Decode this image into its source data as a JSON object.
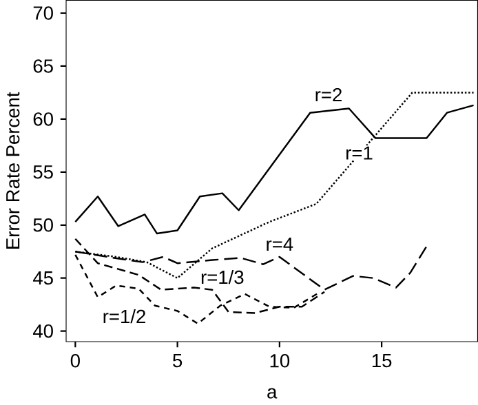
{
  "chart_data": {
    "type": "line",
    "xlabel": "a",
    "ylabel": "Error Rate Percent",
    "xlim": [
      -0.45,
      19.7
    ],
    "ylim": [
      39,
      71.2
    ],
    "xticks": [
      0,
      5,
      10,
      15
    ],
    "yticks": [
      40,
      45,
      50,
      55,
      60,
      65,
      70
    ],
    "marker": "none",
    "series": [
      {
        "color": "#000000",
        "line_style": "solid",
        "x": [
          0,
          1.1,
          2.1,
          3.4,
          4,
          5,
          6.1,
          7.2,
          8,
          11.5,
          13.4,
          14.7,
          17.2,
          18.2,
          19.5
        ],
        "values": [
          50.3,
          52.7,
          49.9,
          51,
          49.2,
          49.5,
          52.7,
          53,
          51.4,
          60.6,
          61,
          58.2,
          58.2,
          60.6,
          61.3
        ]
      },
      {
        "color": "#000000",
        "line_style": "dotted",
        "x": [
          0,
          2,
          3.5,
          5,
          6.7,
          9.5,
          11.8,
          16.5,
          19.5
        ],
        "values": [
          47.5,
          47,
          46.5,
          45,
          47.8,
          50.3,
          52,
          62.5,
          62.5
        ]
      },
      {
        "color": "#000000",
        "line_style": "dashed",
        "x": [
          0,
          1.9,
          3.3,
          4.3,
          5,
          6.7,
          8.1,
          9.2,
          10,
          12.2,
          13.6,
          14.6,
          15.7,
          16.4,
          17.3
        ],
        "values": [
          47.5,
          46.9,
          46.5,
          47,
          46.4,
          46.7,
          46.9,
          46.3,
          47,
          43.9,
          45.2,
          45,
          44.1,
          45.5,
          48.3
        ]
      },
      {
        "color": "#000000",
        "line_style": "dashed",
        "x": [
          0,
          1.1,
          3.1,
          4.2,
          5.8,
          6.7,
          7.5,
          8.8,
          10,
          11.1,
          12.2
        ],
        "values": [
          48.7,
          46.4,
          45.3,
          43.9,
          44.1,
          43.9,
          41.8,
          41.7,
          42.3,
          42.3,
          43.7
        ]
      },
      {
        "color": "#000000",
        "line_style": "dashed",
        "x": [
          0,
          1.1,
          2,
          3.1,
          3.9,
          5,
          6,
          7.1,
          8.3,
          9.5,
          10.7,
          12
        ],
        "values": [
          47.2,
          43.2,
          44.3,
          44,
          42.4,
          41.9,
          40.7,
          42.4,
          43.5,
          42.3,
          42.2,
          43.7
        ]
      }
    ],
    "annotations": [
      {
        "text": "r=2",
        "x": 12.4,
        "y": 62.3
      },
      {
        "text": "r=1",
        "x": 13.9,
        "y": 56.8
      },
      {
        "text": "r=4",
        "x": 10,
        "y": 48.2
      },
      {
        "text": "r=1/3",
        "x": 7.2,
        "y": 45.1
      },
      {
        "text": "r=1/2",
        "x": 2.4,
        "y": 41.4
      }
    ]
  }
}
